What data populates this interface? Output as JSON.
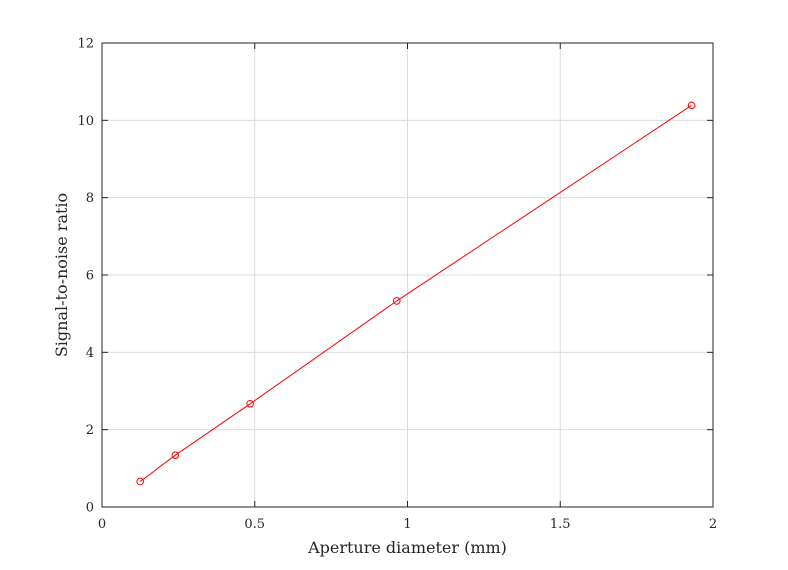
{
  "chart_data": {
    "type": "line",
    "title": "",
    "xlabel": "Aperture diameter (mm)",
    "ylabel": "Signal-to-noise ratio",
    "xlim": [
      0,
      2
    ],
    "ylim": [
      0,
      12
    ],
    "xticks": [
      0,
      0.5,
      1,
      1.5,
      2
    ],
    "xtick_labels": [
      "0",
      "0.5",
      "1",
      "1.5",
      "2"
    ],
    "yticks": [
      0,
      2,
      4,
      6,
      8,
      10,
      12
    ],
    "ytick_labels": [
      "0",
      "2",
      "4",
      "6",
      "8",
      "10",
      "12"
    ],
    "grid": true,
    "series": [
      {
        "color": "#ff0000",
        "marker": "circle",
        "x": [
          0.125,
          0.24,
          0.485,
          0.965,
          1.93
        ],
        "y": [
          0.66,
          1.34,
          2.67,
          5.33,
          10.39
        ]
      }
    ]
  }
}
